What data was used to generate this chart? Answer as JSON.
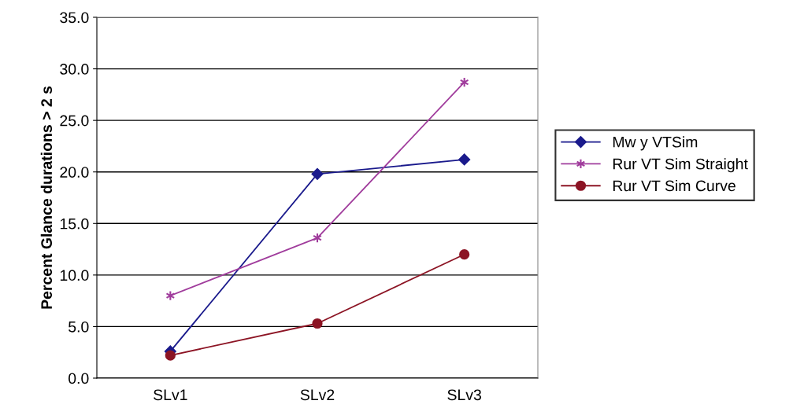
{
  "chart_data": {
    "type": "line",
    "ylabel": "Percent Glance durations > 2 s",
    "categories": [
      "SLv1",
      "SLv2",
      "SLv3"
    ],
    "series": [
      {
        "name": "Mw y VTSim",
        "color": "#1a1a8c",
        "marker": "diamond",
        "values": [
          2.6,
          19.8,
          21.2
        ]
      },
      {
        "name": "Rur VT Sim Straight",
        "color": "#a03c9c",
        "marker": "cross",
        "values": [
          8.0,
          13.6,
          28.7
        ]
      },
      {
        "name": "Rur VT Sim Curve",
        "color": "#8c1424",
        "marker": "circle",
        "values": [
          2.2,
          5.3,
          12.0
        ]
      }
    ],
    "ylim": [
      0,
      35
    ],
    "yticks": [
      {
        "value": 0,
        "label": "0.0"
      },
      {
        "value": 5,
        "label": "5.0"
      },
      {
        "value": 10,
        "label": "10.0"
      },
      {
        "value": 15,
        "label": "15.0"
      },
      {
        "value": 20,
        "label": "20.0"
      },
      {
        "value": 25,
        "label": "25.0"
      },
      {
        "value": 30,
        "label": "30.0"
      },
      {
        "value": 35,
        "label": "35.0"
      }
    ],
    "grid": "y",
    "legend": "right"
  }
}
